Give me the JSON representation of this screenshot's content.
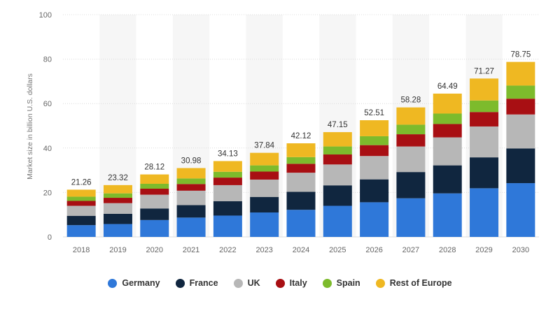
{
  "chart_data": {
    "type": "bar",
    "stacked": true,
    "ylabel": "Market size in billion U.S. dollars",
    "xlabel": "",
    "ylim": [
      0,
      100
    ],
    "yticks": [
      0,
      20,
      40,
      60,
      80,
      100
    ],
    "grid": true,
    "legend_position": "bottom",
    "categories": [
      "2018",
      "2019",
      "2020",
      "2021",
      "2022",
      "2023",
      "2024",
      "2025",
      "2026",
      "2027",
      "2028",
      "2029",
      "2030"
    ],
    "totals": [
      "21.26",
      "23.32",
      "28.12",
      "30.98",
      "34.13",
      "37.84",
      "42.12",
      "47.15",
      "52.51",
      "58.28",
      "64.49",
      "71.27",
      "78.75"
    ],
    "series": [
      {
        "name": "Germany",
        "color": "#2f78d9",
        "values": [
          5.3,
          5.8,
          7.6,
          8.7,
          9.6,
          11.0,
          12.2,
          14.0,
          15.6,
          17.4,
          19.6,
          21.9,
          24.2
        ]
      },
      {
        "name": "France",
        "color": "#10263f",
        "values": [
          4.2,
          4.6,
          5.2,
          5.6,
          6.5,
          7.0,
          8.1,
          9.2,
          10.3,
          11.8,
          12.6,
          13.9,
          15.6
        ]
      },
      {
        "name": "UK",
        "color": "#b7b7b7",
        "values": [
          4.5,
          4.8,
          6.2,
          6.5,
          7.2,
          7.8,
          8.6,
          9.4,
          10.5,
          11.5,
          12.6,
          13.9,
          15.3
        ]
      },
      {
        "name": "Italy",
        "color": "#a80f13",
        "values": [
          2.2,
          2.4,
          2.7,
          3.0,
          3.4,
          3.6,
          4.0,
          4.5,
          4.9,
          5.5,
          6.0,
          6.5,
          7.1
        ]
      },
      {
        "name": "Spain",
        "color": "#7dbb2c",
        "values": [
          1.9,
          2.0,
          2.2,
          2.5,
          2.6,
          2.8,
          3.0,
          3.6,
          4.0,
          4.3,
          4.7,
          5.2,
          5.9
        ]
      },
      {
        "name": "Rest of Europe",
        "color": "#efb822",
        "values": [
          3.16,
          3.72,
          4.22,
          4.68,
          4.83,
          5.64,
          6.22,
          6.45,
          7.21,
          7.78,
          8.99,
          9.87,
          10.65
        ]
      }
    ]
  }
}
